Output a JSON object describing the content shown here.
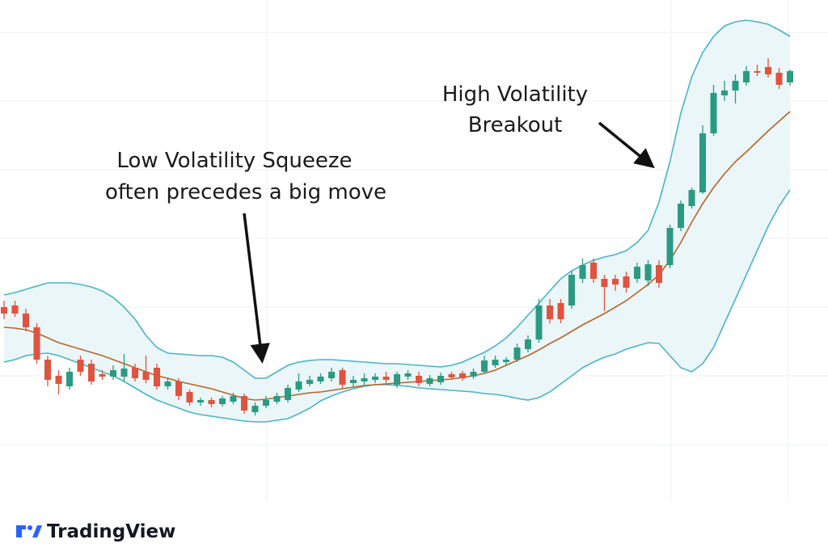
{
  "brand": "TradingView",
  "chart_data": {
    "type": "candlestick",
    "ylim": [
      0,
      68.3
    ],
    "up_color": "#2b9a82",
    "down_color": "#e0533f",
    "annotations": [
      {
        "lines": [
          "Low Volatility Squeeze",
          "often precedes a big move"
        ]
      },
      {
        "lines": [
          "High Volatility",
          "Breakout"
        ]
      }
    ],
    "ohlc": [
      [
        30.3,
        31.1,
        28.8,
        29.5
      ],
      [
        30.5,
        31.1,
        29.1,
        29.5
      ],
      [
        29.5,
        30.1,
        27.3,
        27.8
      ],
      [
        27.8,
        28.3,
        23.3,
        23.8
      ],
      [
        23.8,
        24.3,
        20.5,
        21.3
      ],
      [
        21.8,
        22.5,
        19.5,
        20.8
      ],
      [
        20.5,
        22.8,
        20.1,
        22.3
      ],
      [
        23.8,
        24.3,
        21.8,
        22.3
      ],
      [
        23.3,
        23.8,
        20.7,
        21.1
      ],
      [
        22.0,
        22.5,
        21.3,
        21.7
      ],
      [
        21.7,
        23.1,
        21.3,
        22.5
      ],
      [
        21.7,
        24.5,
        21.1,
        22.7
      ],
      [
        22.8,
        23.3,
        21.1,
        21.5
      ],
      [
        22.3,
        24.3,
        20.9,
        21.3
      ],
      [
        22.8,
        23.3,
        20.1,
        20.5
      ],
      [
        20.5,
        21.5,
        20.1,
        21.1
      ],
      [
        21.1,
        21.5,
        18.8,
        19.3
      ],
      [
        19.8,
        20.1,
        18.1,
        18.5
      ],
      [
        18.5,
        19.1,
        18.1,
        18.8
      ],
      [
        18.8,
        19.1,
        17.9,
        18.3
      ],
      [
        18.3,
        19.3,
        18.0,
        19.0
      ],
      [
        18.6,
        19.7,
        18.3,
        19.3
      ],
      [
        19.3,
        19.6,
        17.1,
        17.5
      ],
      [
        17.3,
        18.5,
        16.9,
        18.1
      ],
      [
        18.1,
        19.3,
        17.8,
        18.8
      ],
      [
        18.6,
        19.7,
        18.3,
        19.3
      ],
      [
        18.8,
        20.7,
        18.5,
        20.3
      ],
      [
        20.1,
        22.1,
        19.8,
        21.1
      ],
      [
        20.8,
        21.8,
        20.5,
        21.3
      ],
      [
        21.1,
        22.1,
        20.8,
        21.7
      ],
      [
        21.5,
        22.8,
        21.1,
        22.3
      ],
      [
        22.5,
        22.8,
        20.3,
        20.7
      ],
      [
        20.9,
        21.8,
        20.5,
        21.3
      ],
      [
        21.1,
        22.1,
        20.7,
        21.5
      ],
      [
        21.3,
        22.1,
        20.9,
        21.7
      ],
      [
        21.7,
        22.3,
        20.9,
        21.3
      ],
      [
        20.7,
        22.3,
        20.3,
        22.0
      ],
      [
        21.7,
        22.5,
        21.3,
        22.1
      ],
      [
        21.8,
        22.3,
        20.5,
        20.9
      ],
      [
        20.8,
        21.9,
        20.5,
        21.5
      ],
      [
        21.0,
        22.2,
        20.7,
        21.8
      ],
      [
        22.0,
        22.3,
        21.3,
        21.6
      ],
      [
        22.1,
        22.4,
        21.2,
        21.5
      ],
      [
        21.7,
        22.7,
        21.4,
        22.3
      ],
      [
        22.3,
        24.3,
        22.0,
        23.7
      ],
      [
        23.1,
        24.3,
        22.8,
        23.8
      ],
      [
        23.5,
        24.1,
        23.1,
        23.8
      ],
      [
        23.8,
        25.8,
        23.5,
        25.3
      ],
      [
        25.1,
        26.8,
        24.7,
        26.3
      ],
      [
        26.3,
        31.3,
        25.9,
        30.5
      ],
      [
        30.5,
        31.3,
        28.3,
        28.8
      ],
      [
        30.8,
        31.3,
        28.3,
        28.8
      ],
      [
        30.5,
        34.8,
        30.1,
        34.3
      ],
      [
        33.8,
        36.3,
        33.3,
        35.5
      ],
      [
        35.8,
        36.3,
        33.3,
        33.8
      ],
      [
        33.8,
        34.3,
        29.8,
        32.8
      ],
      [
        33.8,
        34.3,
        32.3,
        33.1
      ],
      [
        34.1,
        34.7,
        32.1,
        32.7
      ],
      [
        33.8,
        35.8,
        33.3,
        35.3
      ],
      [
        33.6,
        36.1,
        32.9,
        35.6
      ],
      [
        35.5,
        36.1,
        32.7,
        33.3
      ],
      [
        35.5,
        40.5,
        35.1,
        40.1
      ],
      [
        40.1,
        43.5,
        39.7,
        43.1
      ],
      [
        42.8,
        45.1,
        42.5,
        44.8
      ],
      [
        44.5,
        52.8,
        44.3,
        51.8
      ],
      [
        51.8,
        57.8,
        51.5,
        56.8
      ],
      [
        56.5,
        58.3,
        55.8,
        57.1
      ],
      [
        57.1,
        59.1,
        55.5,
        58.3
      ],
      [
        58.1,
        60.1,
        57.7,
        59.5
      ],
      [
        59.5,
        60.3,
        58.9,
        59.3
      ],
      [
        60.0,
        61.1,
        58.7,
        59.1
      ],
      [
        59.3,
        59.9,
        57.3,
        57.8
      ],
      [
        58.1,
        59.7,
        57.7,
        59.5
      ]
    ],
    "bollinger": {
      "band_color": "#4bb3c9",
      "fill_color": "#eaf6f8",
      "middle_color": "#b8652a",
      "upper": [
        31.8,
        32.1,
        32.5,
        32.9,
        33.3,
        33.3,
        33.3,
        33.1,
        32.8,
        32.3,
        31.5,
        30.3,
        28.8,
        26.8,
        25.3,
        24.6,
        24.5,
        24.4,
        24.3,
        24.3,
        24.1,
        23.5,
        22.5,
        21.5,
        21.5,
        22.3,
        23.1,
        23.5,
        23.7,
        23.8,
        23.8,
        23.7,
        23.6,
        23.5,
        23.4,
        23.3,
        23.3,
        23.2,
        23.1,
        23.0,
        22.9,
        23.1,
        23.5,
        24.1,
        24.7,
        25.5,
        26.5,
        27.8,
        29.3,
        30.8,
        32.3,
        33.8,
        34.8,
        35.5,
        36.1,
        36.5,
        36.8,
        37.3,
        38.3,
        39.8,
        43.3,
        48.3,
        54.3,
        58.8,
        61.8,
        63.8,
        65.1,
        65.6,
        65.8,
        65.6,
        65.3,
        64.6,
        63.8
      ],
      "middle": [
        27.8,
        27.7,
        27.5,
        27.1,
        26.5,
        25.9,
        25.5,
        25.1,
        24.7,
        24.3,
        23.8,
        23.3,
        22.8,
        22.3,
        21.8,
        21.5,
        21.1,
        20.8,
        20.5,
        20.2,
        19.8,
        19.4,
        19.0,
        18.8,
        18.9,
        19.1,
        19.3,
        19.5,
        19.7,
        19.8,
        20.0,
        20.2,
        20.4,
        20.6,
        20.7,
        20.8,
        20.9,
        21.0,
        21.1,
        21.2,
        21.3,
        21.4,
        21.6,
        21.8,
        22.1,
        22.5,
        23.1,
        23.7,
        24.3,
        25.0,
        25.8,
        26.5,
        27.3,
        28.1,
        28.8,
        29.5,
        30.3,
        31.1,
        32.1,
        33.1,
        34.3,
        36.1,
        38.3,
        40.8,
        43.1,
        45.1,
        46.8,
        48.3,
        49.5,
        50.8,
        52.1,
        53.3,
        54.5
      ],
      "lower": [
        23.5,
        23.8,
        24.3,
        24.5,
        24.6,
        24.3,
        23.8,
        23.3,
        22.8,
        22.3,
        21.8,
        21.1,
        20.3,
        19.5,
        18.8,
        18.3,
        17.8,
        17.3,
        17.0,
        16.8,
        16.6,
        16.4,
        16.2,
        16.1,
        16.1,
        16.3,
        16.5,
        17.1,
        17.8,
        18.7,
        19.3,
        19.8,
        20.2,
        20.5,
        20.7,
        20.7,
        20.6,
        20.5,
        20.3,
        20.2,
        20.1,
        20.0,
        19.9,
        19.8,
        19.6,
        19.5,
        19.3,
        19.0,
        18.8,
        19.1,
        19.8,
        20.8,
        21.8,
        22.8,
        23.5,
        24.1,
        24.5,
        25.1,
        25.5,
        25.9,
        25.8,
        24.3,
        22.8,
        22.3,
        23.3,
        25.3,
        28.3,
        31.3,
        34.3,
        37.3,
        40.3,
        42.8,
        44.8
      ]
    }
  }
}
